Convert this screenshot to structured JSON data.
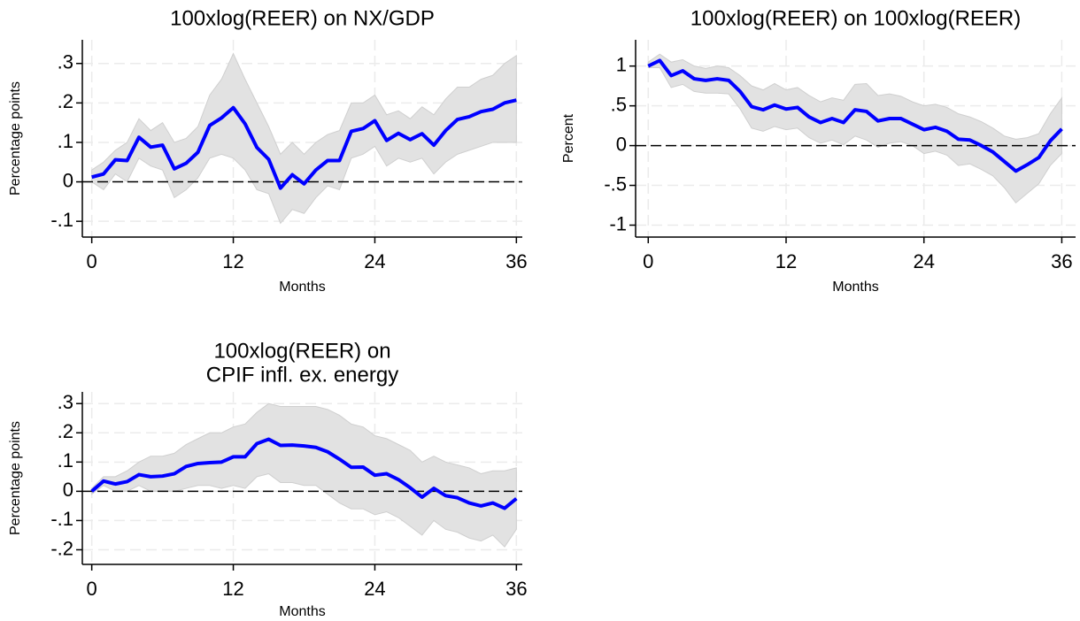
{
  "chart_data": [
    {
      "type": "line",
      "title": [
        "100xlog(REER) on NX/GDP"
      ],
      "xlabel": "Months",
      "ylabel": "Percentage points",
      "x": [
        0,
        1,
        2,
        3,
        4,
        5,
        6,
        7,
        8,
        9,
        10,
        11,
        12,
        13,
        14,
        15,
        16,
        17,
        18,
        19,
        20,
        21,
        22,
        23,
        24,
        25,
        26,
        27,
        28,
        29,
        30,
        31,
        32,
        33,
        34,
        35,
        36
      ],
      "series": [
        {
          "color": "#0000ff",
          "values": [
            0.012,
            0.02,
            0.056,
            0.054,
            0.113,
            0.088,
            0.093,
            0.033,
            0.047,
            0.075,
            0.143,
            0.162,
            0.188,
            0.147,
            0.087,
            0.057,
            -0.016,
            0.018,
            -0.005,
            0.03,
            0.054,
            0.054,
            0.128,
            0.135,
            0.155,
            0.105,
            0.123,
            0.107,
            0.122,
            0.093,
            0.13,
            0.158,
            0.165,
            0.178,
            0.184,
            0.2,
            0.207
          ]
        }
      ],
      "band": {
        "color": "#e2e2e2",
        "upper": [
          0.03,
          0.05,
          0.08,
          0.1,
          0.16,
          0.13,
          0.15,
          0.1,
          0.11,
          0.14,
          0.22,
          0.26,
          0.325,
          0.26,
          0.2,
          0.14,
          0.07,
          0.1,
          0.07,
          0.1,
          0.12,
          0.13,
          0.2,
          0.2,
          0.22,
          0.17,
          0.18,
          0.16,
          0.19,
          0.17,
          0.21,
          0.24,
          0.24,
          0.26,
          0.27,
          0.3,
          0.32
        ],
        "lower": [
          0,
          -0.02,
          0.02,
          0,
          0.06,
          0.04,
          0.03,
          -0.04,
          -0.02,
          0.01,
          0.06,
          0.07,
          0.06,
          0.03,
          -0.02,
          -0.03,
          -0.105,
          -0.07,
          -0.08,
          -0.04,
          -0.01,
          -0.02,
          0.06,
          0.07,
          0.09,
          0.04,
          0.06,
          0.05,
          0.06,
          0.02,
          0.05,
          0.07,
          0.08,
          0.09,
          0.1,
          0.1,
          0.1
        ]
      },
      "hline": 0,
      "xlim": [
        -0.8,
        36.5
      ],
      "xticks": [
        0,
        12,
        24,
        36
      ],
      "ylim": [
        -0.14,
        0.36
      ],
      "yticks": [
        {
          "value": -0.1,
          "label": "-.1"
        },
        0,
        {
          "value": 0.1,
          "label": ".1"
        },
        {
          "value": 0.2,
          "label": ".2"
        },
        {
          "value": 0.3,
          "label": ".3"
        }
      ],
      "grid": true
    },
    {
      "type": "line",
      "title": [
        "100xlog(REER) on 100xlog(REER)"
      ],
      "xlabel": "Months",
      "ylabel": "Percent",
      "x": [
        0,
        1,
        2,
        3,
        4,
        5,
        6,
        7,
        8,
        9,
        10,
        11,
        12,
        13,
        14,
        15,
        16,
        17,
        18,
        19,
        20,
        21,
        22,
        23,
        24,
        25,
        26,
        27,
        28,
        29,
        30,
        31,
        32,
        33,
        34,
        35,
        36
      ],
      "series": [
        {
          "color": "#0000ff",
          "values": [
            1.0,
            1.07,
            0.88,
            0.94,
            0.84,
            0.82,
            0.84,
            0.82,
            0.68,
            0.49,
            0.45,
            0.51,
            0.46,
            0.48,
            0.36,
            0.29,
            0.34,
            0.29,
            0.45,
            0.43,
            0.31,
            0.34,
            0.34,
            0.27,
            0.2,
            0.23,
            0.18,
            0.08,
            0.07,
            0.0,
            -0.08,
            -0.2,
            -0.32,
            -0.24,
            -0.15,
            0.06,
            0.21
          ]
        }
      ],
      "band": {
        "color": "#e2e2e2",
        "upper": [
          1.05,
          1.15,
          1.05,
          1.08,
          1.0,
          0.97,
          1.0,
          0.98,
          0.88,
          0.75,
          0.7,
          0.78,
          0.7,
          0.73,
          0.63,
          0.55,
          0.6,
          0.57,
          0.77,
          0.78,
          0.63,
          0.65,
          0.62,
          0.55,
          0.5,
          0.52,
          0.48,
          0.4,
          0.36,
          0.3,
          0.22,
          0.12,
          0.08,
          0.1,
          0.15,
          0.4,
          0.6
        ],
        "lower": [
          0.98,
          0.98,
          0.73,
          0.77,
          0.68,
          0.66,
          0.66,
          0.65,
          0.46,
          0.22,
          0.18,
          0.24,
          0.2,
          0.22,
          0.1,
          0.03,
          0.07,
          0.01,
          0.12,
          0.07,
          -0.02,
          0.03,
          0.05,
          0.0,
          -0.1,
          -0.07,
          -0.12,
          -0.25,
          -0.23,
          -0.3,
          -0.38,
          -0.53,
          -0.72,
          -0.6,
          -0.48,
          -0.25,
          -0.1
        ]
      },
      "hline": 0,
      "xlim": [
        -1.1,
        37.2
      ],
      "xticks": [
        0,
        12,
        24,
        36
      ],
      "ylim": [
        -1.15,
        1.33
      ],
      "yticks": [
        -1,
        {
          "value": -0.5,
          "label": "-.5"
        },
        0,
        {
          "value": 0.5,
          "label": ".5"
        },
        1
      ],
      "grid": true
    },
    {
      "type": "line",
      "title": [
        "100xlog(REER) on",
        "CPIF infl. ex. energy"
      ],
      "xlabel": "Months",
      "ylabel": "Percentage points",
      "x": [
        0,
        1,
        2,
        3,
        4,
        5,
        6,
        7,
        8,
        9,
        10,
        11,
        12,
        13,
        14,
        15,
        16,
        17,
        18,
        19,
        20,
        21,
        22,
        23,
        24,
        25,
        26,
        27,
        28,
        29,
        30,
        31,
        32,
        33,
        34,
        35,
        36
      ],
      "series": [
        {
          "color": "#0000ff",
          "values": [
            0,
            0.035,
            0.025,
            0.033,
            0.057,
            0.05,
            0.052,
            0.06,
            0.085,
            0.095,
            0.098,
            0.1,
            0.118,
            0.118,
            0.163,
            0.178,
            0.157,
            0.158,
            0.155,
            0.15,
            0.135,
            0.11,
            0.082,
            0.083,
            0.055,
            0.06,
            0.04,
            0.012,
            -0.02,
            0.01,
            -0.015,
            -0.022,
            -0.04,
            -0.05,
            -0.04,
            -0.058,
            -0.025
          ]
        }
      ],
      "band": {
        "color": "#e2e2e2",
        "upper": [
          0.01,
          0.05,
          0.05,
          0.07,
          0.1,
          0.12,
          0.12,
          0.13,
          0.16,
          0.18,
          0.2,
          0.2,
          0.22,
          0.23,
          0.27,
          0.3,
          0.29,
          0.29,
          0.29,
          0.29,
          0.28,
          0.26,
          0.23,
          0.22,
          0.19,
          0.18,
          0.16,
          0.14,
          0.1,
          0.12,
          0.1,
          0.09,
          0.08,
          0.06,
          0.07,
          0.07,
          0.08
        ],
        "lower": [
          -0.01,
          0.02,
          0.0,
          0.0,
          0.02,
          0.0,
          0.0,
          0.0,
          0.01,
          0.02,
          0.02,
          0.01,
          0.02,
          0.01,
          0.05,
          0.06,
          0.03,
          0.03,
          0.02,
          0.02,
          -0.01,
          -0.04,
          -0.06,
          -0.06,
          -0.08,
          -0.07,
          -0.09,
          -0.12,
          -0.15,
          -0.1,
          -0.13,
          -0.14,
          -0.16,
          -0.17,
          -0.15,
          -0.19,
          -0.13
        ]
      },
      "hline": 0,
      "xlim": [
        -0.8,
        36.5
      ],
      "xticks": [
        0,
        12,
        24,
        36
      ],
      "ylim": [
        -0.25,
        0.34
      ],
      "yticks": [
        {
          "value": -0.2,
          "label": "-.2"
        },
        {
          "value": -0.1,
          "label": "-.1"
        },
        0,
        {
          "value": 0.1,
          "label": ".1"
        },
        {
          "value": 0.2,
          "label": ".2"
        },
        {
          "value": 0.3,
          "label": ".3"
        }
      ],
      "grid": true
    }
  ]
}
